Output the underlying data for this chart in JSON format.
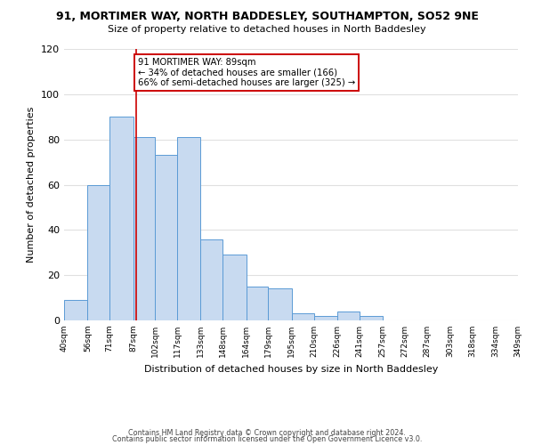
{
  "title": "91, MORTIMER WAY, NORTH BADDESLEY, SOUTHAMPTON, SO52 9NE",
  "subtitle": "Size of property relative to detached houses in North Baddesley",
  "xlabel": "Distribution of detached houses by size in North Baddesley",
  "ylabel": "Number of detached properties",
  "bar_color": "#c8daf0",
  "bar_edge_color": "#5b9bd5",
  "bin_edges": [
    40,
    56,
    71,
    87,
    102,
    117,
    133,
    148,
    164,
    179,
    195,
    210,
    226,
    241,
    257,
    272,
    287,
    303,
    318,
    334,
    349
  ],
  "bar_heights": [
    9,
    60,
    90,
    81,
    73,
    81,
    36,
    29,
    15,
    14,
    3,
    2,
    4,
    2,
    0,
    0,
    0,
    0,
    0,
    0
  ],
  "tick_labels": [
    "40sqm",
    "56sqm",
    "71sqm",
    "87sqm",
    "102sqm",
    "117sqm",
    "133sqm",
    "148sqm",
    "164sqm",
    "179sqm",
    "195sqm",
    "210sqm",
    "226sqm",
    "241sqm",
    "257sqm",
    "272sqm",
    "287sqm",
    "303sqm",
    "318sqm",
    "334sqm",
    "349sqm"
  ],
  "ylim": [
    0,
    120
  ],
  "yticks": [
    0,
    20,
    40,
    60,
    80,
    100,
    120
  ],
  "vline_x": 89,
  "vline_color": "#cc0000",
  "annotation_title": "91 MORTIMER WAY: 89sqm",
  "annotation_line1": "← 34% of detached houses are smaller (166)",
  "annotation_line2": "66% of semi-detached houses are larger (325) →",
  "annotation_box_color": "#ffffff",
  "annotation_box_edge": "#cc0000",
  "footer1": "Contains HM Land Registry data © Crown copyright and database right 2024.",
  "footer2": "Contains public sector information licensed under the Open Government Licence v3.0.",
  "bg_color": "#ffffff",
  "grid_color": "#e0e0e0"
}
